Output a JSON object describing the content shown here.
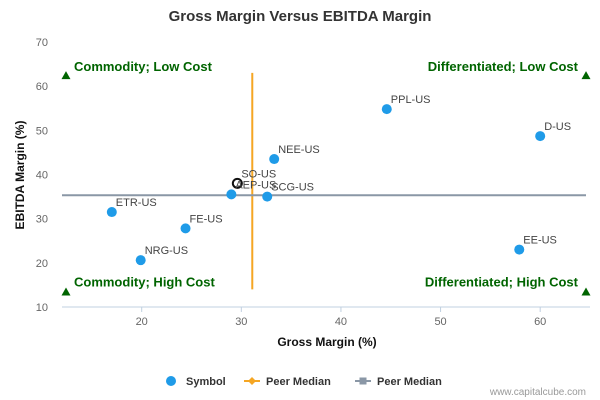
{
  "chart_data": {
    "type": "scatter",
    "title": "Gross Margin Versus EBITDA Margin",
    "xlabel": "Gross Margin (%)",
    "ylabel": "EBITDA Margin (%)",
    "xlim": [
      12,
      65
    ],
    "ylim": [
      10,
      70
    ],
    "xticks": [
      20,
      30,
      40,
      50,
      60
    ],
    "yticks": [
      10,
      20,
      30,
      40,
      50,
      60,
      70
    ],
    "grid": false,
    "points": [
      {
        "label": "PPL-US",
        "x": 44.6,
        "y": 54.8
      },
      {
        "label": "D-US",
        "x": 60.0,
        "y": 48.7
      },
      {
        "label": "NEE-US",
        "x": 33.3,
        "y": 43.5
      },
      {
        "label": "SO-US",
        "x": 29.6,
        "y": 38.0,
        "highlight": true
      },
      {
        "label": "AEP-US",
        "x": 29.0,
        "y": 35.5
      },
      {
        "label": "SCG-US",
        "x": 32.6,
        "y": 35.0
      },
      {
        "label": "ETR-US",
        "x": 17.0,
        "y": 31.5
      },
      {
        "label": "FE-US",
        "x": 24.4,
        "y": 27.8
      },
      {
        "label": "EE-US",
        "x": 57.9,
        "y": 23.0
      },
      {
        "label": "NRG-US",
        "x": 19.9,
        "y": 20.6
      }
    ],
    "peer_median": {
      "x": 31.1,
      "y": 35.3
    },
    "quadrant_labels": {
      "top_left": "Commodity; Low Cost",
      "top_right": "Differentiated; Low Cost",
      "bottom_left": "Commodity; High Cost",
      "bottom_right": "Differentiated; High Cost"
    },
    "legend": [
      {
        "name": "Symbol",
        "kind": "circle",
        "color": "#1f9be8"
      },
      {
        "name": "Peer Median",
        "kind": "diamond-line",
        "color": "#f5a623"
      },
      {
        "name": "Peer Median",
        "kind": "square-line",
        "color": "#8a97a6"
      }
    ],
    "legend_position": "bottom",
    "credit": "www.capitalcube.com",
    "colors": {
      "point": "#1f9be8",
      "x_median": "#f5a623",
      "y_median": "#8a97a6",
      "quadrant": "#006400"
    }
  }
}
